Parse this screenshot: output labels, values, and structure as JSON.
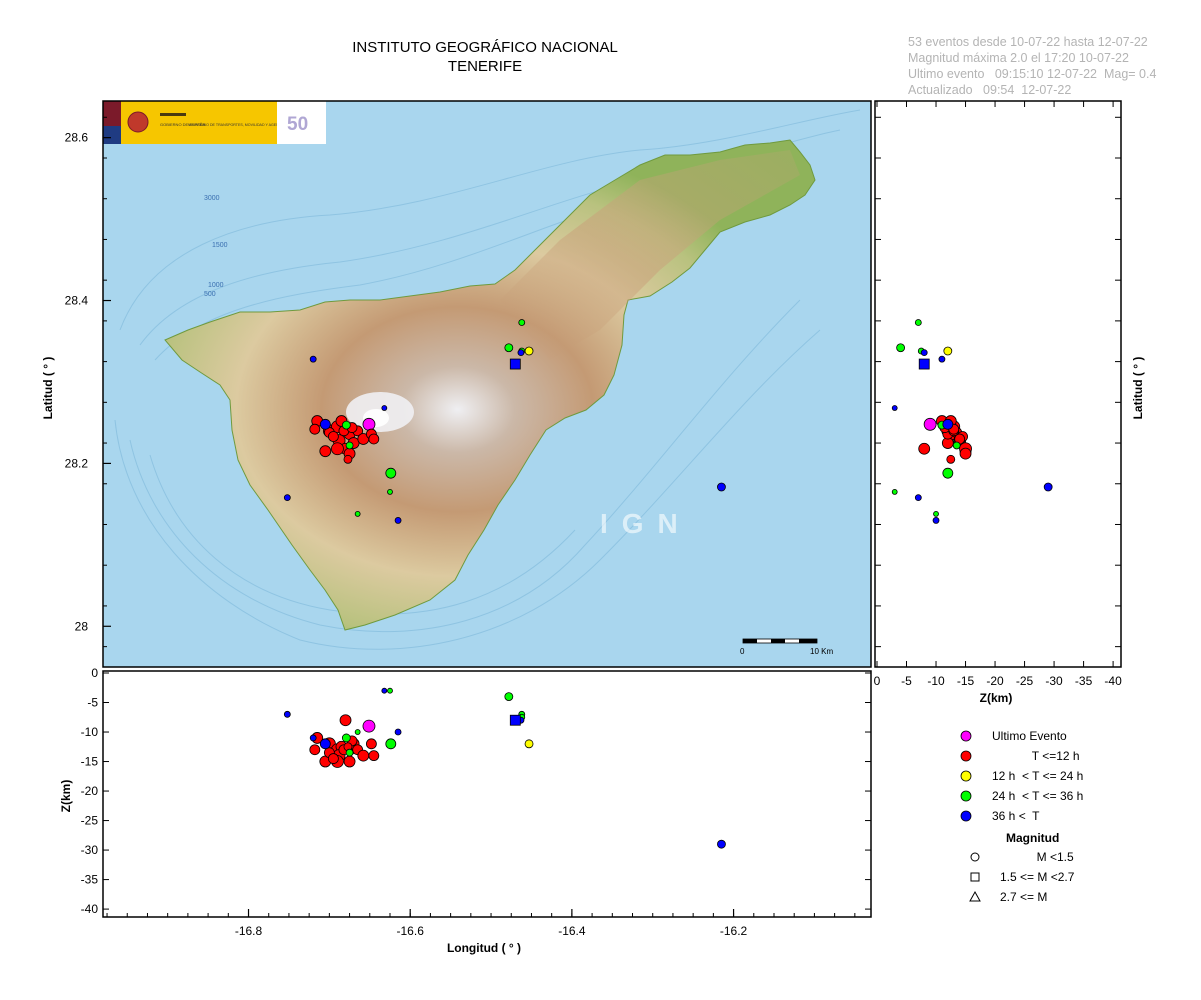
{
  "header": {
    "title_line1": "INSTITUTO GEOGRÁFICO NACIONAL",
    "title_line2": "TENERIFE"
  },
  "info": {
    "line1": "53 eventos desde 10-07-22 hasta 12-07-22",
    "line2": "Magnitud máxima 2.0 el 17:20 10-07-22",
    "line3": "Ultimo evento   09:15:10 12-07-22  Mag= 0.4",
    "line4": "Actualizado   09:54  12-07-22"
  },
  "map": {
    "watermark": "IGN",
    "scale_label_start": "0",
    "scale_label_end": "10 Km",
    "bathymetry_labels": [
      "3000",
      "1500",
      "1000",
      "500"
    ],
    "logo": {
      "org_text": "GOBIERNO DE ESPAÑA",
      "ministry_text": "MINISTERIO DE TRANSPORTES, MOVILIDAD Y AGENDA URBANA"
    },
    "colors": {
      "sea": "#a9d6ee",
      "lowland": "#8fb35a",
      "midland": "#d8c9a0",
      "highland": "#b98c68",
      "peak": "#e8e8ec"
    }
  },
  "axes": {
    "lon_label": "Longitud ( ° )",
    "lat_label": "Latitud ( ° )",
    "depth_label": "Z(km)",
    "lon_ticks": [
      "-16.8",
      "-16.6",
      "-16.4",
      "-16.2"
    ],
    "lat_ticks": [
      "28.6",
      "28.4",
      "28.2",
      "28"
    ],
    "depth_ticks_bottom": [
      "0",
      "-5",
      "-10",
      "-15",
      "-20",
      "-25",
      "-30",
      "-35",
      "-40"
    ],
    "depth_ticks_right": [
      "0",
      "-5",
      "-10",
      "-15",
      "-20",
      "-25",
      "-30",
      "-35",
      "-40"
    ],
    "lon_range": [
      -16.98,
      -16.03
    ],
    "lat_range": [
      27.95,
      28.645
    ],
    "depth_range": [
      0,
      -41
    ]
  },
  "legend": {
    "items": [
      {
        "label": "Ultimo Evento",
        "color": "#ff00ff"
      },
      {
        "label": "            T <=12 h",
        "color": "#ff0000"
      },
      {
        "label": "12 h  < T <= 24 h",
        "color": "#ffff00"
      },
      {
        "label": "24 h  < T <= 36 h",
        "color": "#00ff00"
      },
      {
        "label": "36 h <  T",
        "color": "#0000ff"
      }
    ],
    "mag_title": "Magnitud",
    "mag_items": [
      {
        "label": "           M <1.5",
        "shape": "circle"
      },
      {
        "label": "1.5 <= M <2.7",
        "shape": "square"
      },
      {
        "label": "2.7 <= M",
        "shape": "triangle"
      }
    ]
  },
  "chart_data": {
    "type": "scatter",
    "x_field": "longitude",
    "y_field": "latitude",
    "events": [
      {
        "lon": -16.651,
        "lat": 28.248,
        "z": -9.0,
        "color": "#ff00ff",
        "shape": "circle",
        "size": 6
      },
      {
        "lon": -16.715,
        "lat": 28.252,
        "z": -11.0,
        "color": "#ff0000",
        "shape": "circle",
        "size": 5.5
      },
      {
        "lon": -16.7,
        "lat": 28.24,
        "z": -12.0,
        "color": "#ff0000",
        "shape": "circle",
        "size": 6
      },
      {
        "lon": -16.69,
        "lat": 28.245,
        "z": -13.0,
        "color": "#ff0000",
        "shape": "circle",
        "size": 6
      },
      {
        "lon": -16.685,
        "lat": 28.252,
        "z": -12.5,
        "color": "#ff0000",
        "shape": "circle",
        "size": 5.5
      },
      {
        "lon": -16.688,
        "lat": 28.228,
        "z": -14.0,
        "color": "#ff0000",
        "shape": "circle",
        "size": 6
      },
      {
        "lon": -16.675,
        "lat": 28.236,
        "z": -13.0,
        "color": "#ff0000",
        "shape": "circle",
        "size": 5.5
      },
      {
        "lon": -16.67,
        "lat": 28.225,
        "z": -12.0,
        "color": "#ff0000",
        "shape": "circle",
        "size": 5.5
      },
      {
        "lon": -16.68,
        "lat": 28.218,
        "z": -8.0,
        "color": "#ff0000",
        "shape": "circle",
        "size": 5.5
      },
      {
        "lon": -16.705,
        "lat": 28.215,
        "z": -15.0,
        "color": "#ff0000",
        "shape": "circle",
        "size": 5.5
      },
      {
        "lon": -16.69,
        "lat": 28.218,
        "z": -15.0,
        "color": "#ff0000",
        "shape": "circle",
        "size": 6
      },
      {
        "lon": -16.675,
        "lat": 28.212,
        "z": -15.0,
        "color": "#ff0000",
        "shape": "circle",
        "size": 5.5
      },
      {
        "lon": -16.665,
        "lat": 28.24,
        "z": -13.0,
        "color": "#ff0000",
        "shape": "circle",
        "size": 5
      },
      {
        "lon": -16.658,
        "lat": 28.23,
        "z": -14.0,
        "color": "#ff0000",
        "shape": "circle",
        "size": 5.5
      },
      {
        "lon": -16.648,
        "lat": 28.236,
        "z": -12.0,
        "color": "#ff0000",
        "shape": "circle",
        "size": 5
      },
      {
        "lon": -16.7,
        "lat": 28.238,
        "z": -13.5,
        "color": "#ff0000",
        "shape": "circle",
        "size": 5
      },
      {
        "lon": -16.695,
        "lat": 28.233,
        "z": -14.5,
        "color": "#ff0000",
        "shape": "circle",
        "size": 5
      },
      {
        "lon": -16.682,
        "lat": 28.24,
        "z": -13.0,
        "color": "#ff0000",
        "shape": "circle",
        "size": 5
      },
      {
        "lon": -16.672,
        "lat": 28.244,
        "z": -11.5,
        "color": "#ff0000",
        "shape": "circle",
        "size": 5
      },
      {
        "lon": -16.645,
        "lat": 28.23,
        "z": -14.0,
        "color": "#ff0000",
        "shape": "circle",
        "size": 5
      },
      {
        "lon": -16.718,
        "lat": 28.242,
        "z": -13.0,
        "color": "#ff0000",
        "shape": "circle",
        "size": 5
      },
      {
        "lon": -16.677,
        "lat": 28.205,
        "z": -12.5,
        "color": "#ff0000",
        "shape": "circle",
        "size": 4
      },
      {
        "lon": -16.453,
        "lat": 28.338,
        "z": -12.0,
        "color": "#ffff00",
        "shape": "circle",
        "size": 4
      },
      {
        "lon": -16.679,
        "lat": 28.247,
        "z": -11.0,
        "color": "#00ff00",
        "shape": "circle",
        "size": 4
      },
      {
        "lon": -16.624,
        "lat": 28.188,
        "z": -12.0,
        "color": "#00ff00",
        "shape": "circle",
        "size": 5
      },
      {
        "lon": -16.478,
        "lat": 28.342,
        "z": -4.0,
        "color": "#00ff00",
        "shape": "circle",
        "size": 4
      },
      {
        "lon": -16.462,
        "lat": 28.373,
        "z": -7.0,
        "color": "#00ff00",
        "shape": "circle",
        "size": 3
      },
      {
        "lon": -16.462,
        "lat": 28.338,
        "z": -7.5,
        "color": "#00ff00",
        "shape": "circle",
        "size": 3
      },
      {
        "lon": -16.625,
        "lat": 28.165,
        "z": -3.0,
        "color": "#00ff00",
        "shape": "circle",
        "size": 2.5
      },
      {
        "lon": -16.665,
        "lat": 28.138,
        "z": -10.0,
        "color": "#00ff00",
        "shape": "circle",
        "size": 2.5
      },
      {
        "lon": -16.675,
        "lat": 28.222,
        "z": -13.5,
        "color": "#00ff00",
        "shape": "circle",
        "size": 3.5
      },
      {
        "lon": -16.705,
        "lat": 28.248,
        "z": -12.0,
        "color": "#0000ff",
        "shape": "circle",
        "size": 5
      },
      {
        "lon": -16.72,
        "lat": 28.328,
        "z": -11.0,
        "color": "#0000ff",
        "shape": "circle",
        "size": 3
      },
      {
        "lon": -16.632,
        "lat": 28.268,
        "z": -3.0,
        "color": "#0000ff",
        "shape": "circle",
        "size": 2.5
      },
      {
        "lon": -16.752,
        "lat": 28.158,
        "z": -7.0,
        "color": "#0000ff",
        "shape": "circle",
        "size": 3
      },
      {
        "lon": -16.615,
        "lat": 28.13,
        "z": -10.0,
        "color": "#0000ff",
        "shape": "circle",
        "size": 3
      },
      {
        "lon": -16.463,
        "lat": 28.336,
        "z": -8.0,
        "color": "#0000ff",
        "shape": "circle",
        "size": 3
      },
      {
        "lon": -16.215,
        "lat": 28.171,
        "z": -29.0,
        "color": "#0000ff",
        "shape": "circle",
        "size": 4
      },
      {
        "lon": -16.47,
        "lat": 28.322,
        "z": -8.0,
        "color": "#0000ff",
        "shape": "square",
        "size": 5
      }
    ]
  }
}
